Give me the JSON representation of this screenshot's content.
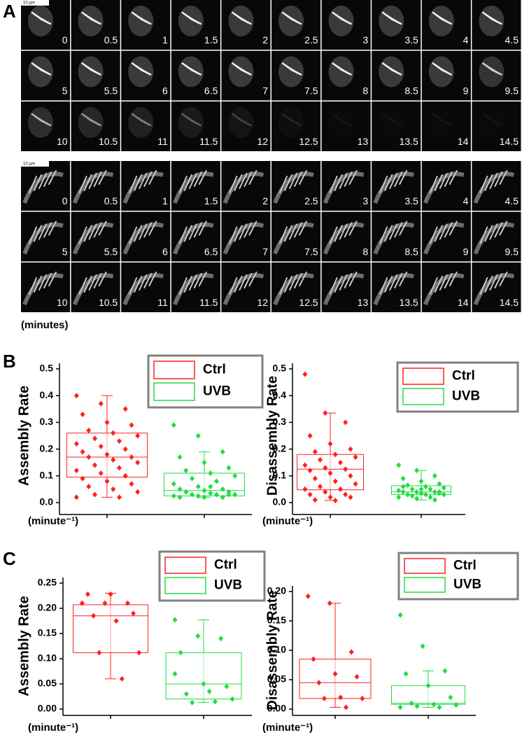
{
  "panel_labels": [
    "A",
    "B",
    "C"
  ],
  "panel_a": {
    "sequences": [
      {
        "scale_bar": "10 µm",
        "times": [
          "0",
          "0.5",
          "1",
          "1.5",
          "2",
          "2.5",
          "3",
          "3.5",
          "4",
          "4.5",
          "5",
          "5.5",
          "6",
          "6.5",
          "7",
          "7.5",
          "8",
          "8.5",
          "9",
          "9.5",
          "10",
          "10.5",
          "11",
          "11.5",
          "12",
          "12.5",
          "13",
          "13.5",
          "14",
          "14.5"
        ]
      },
      {
        "scale_bar": "10 µm",
        "times": [
          "0",
          "0.5",
          "1",
          "1.5",
          "2",
          "2.5",
          "3",
          "3.5",
          "4",
          "4.5",
          "5",
          "5.5",
          "6",
          "6.5",
          "7",
          "7.5",
          "8",
          "8.5",
          "9",
          "9.5",
          "10",
          "10.5",
          "11",
          "11.5",
          "12",
          "12.5",
          "13",
          "13.5",
          "14",
          "14.5"
        ]
      }
    ],
    "unit_label": "(minutes)"
  },
  "chart_data": [
    {
      "type": "box",
      "y_label": "Assembly Rate",
      "x_label": "(minute⁻¹)",
      "legend": "top-right",
      "ylim": [
        0,
        0.5
      ],
      "yticks": [
        {
          "value": 0,
          "label": "0.0"
        },
        0.1,
        0.2,
        0.3,
        0.4,
        0.5
      ],
      "series": [
        {
          "name": "Ctrl",
          "color": "#ff2020",
          "q1": 0.095,
          "median": 0.17,
          "q3": 0.26,
          "whisker_low": 0.02,
          "whisker_high": 0.4,
          "points": [
            0.4,
            0.37,
            0.35,
            0.33,
            0.3,
            0.29,
            0.27,
            0.26,
            0.25,
            0.24,
            0.23,
            0.22,
            0.21,
            0.2,
            0.19,
            0.18,
            0.17,
            0.17,
            0.16,
            0.15,
            0.14,
            0.13,
            0.12,
            0.11,
            0.1,
            0.09,
            0.08,
            0.07,
            0.06,
            0.05,
            0.04,
            0.03,
            0.02,
            0.02
          ]
        },
        {
          "name": "UVB",
          "color": "#22dd44",
          "q1": 0.025,
          "median": 0.045,
          "q3": 0.11,
          "whisker_low": 0.02,
          "whisker_high": 0.19,
          "points": [
            0.29,
            0.25,
            0.19,
            0.17,
            0.15,
            0.13,
            0.12,
            0.11,
            0.1,
            0.09,
            0.08,
            0.07,
            0.06,
            0.05,
            0.05,
            0.045,
            0.04,
            0.04,
            0.035,
            0.03,
            0.03,
            0.03,
            0.025,
            0.025,
            0.02,
            0.02,
            0.02,
            0.03,
            0.04,
            0.06
          ]
        }
      ]
    },
    {
      "type": "box",
      "y_label": "Disassembly Rate",
      "x_label": "(minute⁻¹)",
      "legend": "top-right",
      "ylim": [
        0,
        0.5
      ],
      "yticks": [
        {
          "value": 0,
          "label": "0.0"
        },
        0.1,
        0.2,
        0.3,
        0.4,
        0.5
      ],
      "series": [
        {
          "name": "Ctrl",
          "color": "#ff2020",
          "q1": 0.048,
          "median": 0.125,
          "q3": 0.18,
          "whisker_low": 0.008,
          "whisker_high": 0.335,
          "points": [
            0.48,
            0.335,
            0.3,
            0.25,
            0.22,
            0.2,
            0.19,
            0.18,
            0.17,
            0.16,
            0.15,
            0.14,
            0.13,
            0.125,
            0.12,
            0.11,
            0.1,
            0.09,
            0.08,
            0.07,
            0.06,
            0.05,
            0.05,
            0.04,
            0.03,
            0.03,
            0.02,
            0.02,
            0.01,
            0.008
          ]
        },
        {
          "name": "UVB",
          "color": "#22dd44",
          "q1": 0.03,
          "median": 0.04,
          "q3": 0.063,
          "whisker_low": 0.01,
          "whisker_high": 0.12,
          "points": [
            0.14,
            0.12,
            0.1,
            0.09,
            0.08,
            0.07,
            0.065,
            0.06,
            0.055,
            0.05,
            0.05,
            0.045,
            0.04,
            0.04,
            0.04,
            0.035,
            0.035,
            0.03,
            0.03,
            0.03,
            0.025,
            0.02,
            0.02,
            0.015,
            0.01,
            0.06,
            0.05,
            0.04
          ]
        }
      ]
    },
    {
      "type": "box",
      "y_label": "Assembly Rate",
      "x_label": "(minute⁻¹)",
      "legend": "top-right",
      "ylim": [
        0,
        0.25
      ],
      "yticks": [
        {
          "value": 0,
          "label": "0.00"
        },
        0.05,
        {
          "value": 0.1,
          "label": "0.10"
        },
        0.15,
        {
          "value": 0.2,
          "label": "0.20"
        },
        0.25
      ],
      "series": [
        {
          "name": "Ctrl",
          "color": "#ff2020",
          "q1": 0.112,
          "median": 0.185,
          "q3": 0.207,
          "whisker_low": 0.06,
          "whisker_high": 0.23,
          "points": [
            0.21,
            0.21,
            0.21,
            0.228,
            0.228,
            0.19,
            0.185,
            0.175,
            0.112,
            0.112,
            0.06,
            0.21
          ]
        },
        {
          "name": "UVB",
          "color": "#22dd44",
          "q1": 0.02,
          "median": 0.05,
          "q3": 0.112,
          "whisker_low": 0.013,
          "whisker_high": 0.177,
          "points": [
            0.177,
            0.145,
            0.14,
            0.112,
            0.05,
            0.045,
            0.03,
            0.035,
            0.02,
            0.013,
            0.015,
            0.07
          ]
        }
      ]
    },
    {
      "type": "box",
      "y_label": "Disassembly Rate",
      "x_label": "(minute⁻¹)",
      "legend": "top-right",
      "ylim": [
        0,
        0.2
      ],
      "yticks": [
        {
          "value": 0,
          "label": "0.00"
        },
        0.05,
        {
          "value": 0.1,
          "label": "0.10"
        },
        0.15,
        {
          "value": 0.2,
          "label": "0.20"
        }
      ],
      "series": [
        {
          "name": "Ctrl",
          "color": "#ff2020",
          "q1": 0.018,
          "median": 0.045,
          "q3": 0.085,
          "whisker_low": 0.003,
          "whisker_high": 0.18,
          "points": [
            0.192,
            0.18,
            0.097,
            0.085,
            0.06,
            0.055,
            0.045,
            0.02,
            0.018,
            0.018,
            0.003
          ]
        },
        {
          "name": "UVB",
          "color": "#22dd44",
          "q1": 0.008,
          "median": 0.01,
          "q3": 0.04,
          "whisker_low": 0.003,
          "whisker_high": 0.065,
          "points": [
            0.16,
            0.107,
            0.065,
            0.06,
            0.04,
            0.02,
            0.01,
            0.008,
            0.007,
            0.005,
            0.003,
            0.003
          ]
        }
      ]
    }
  ]
}
